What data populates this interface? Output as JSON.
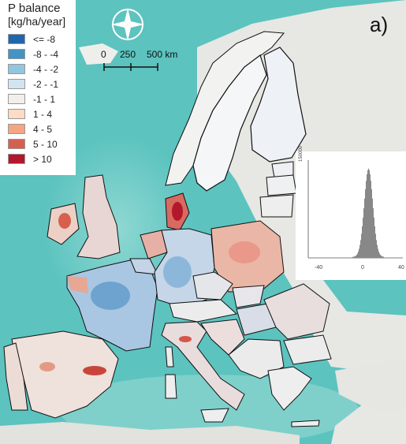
{
  "map": {
    "panel_label": "a)",
    "legend": {
      "title": "P balance",
      "unit": "[kg/ha/year]",
      "classes": [
        {
          "label": "<= -8",
          "color": "#2166ac"
        },
        {
          "label": "-8 - -4",
          "color": "#4393c3"
        },
        {
          "label": "-4 - -2",
          "color": "#92c5de"
        },
        {
          "label": "-2 - -1",
          "color": "#d1e5f0"
        },
        {
          "label": "-1 - 1",
          "color": "#f2efeb"
        },
        {
          "label": "1 - 4",
          "color": "#fddbc7"
        },
        {
          "label": "4 - 5",
          "color": "#f4a582"
        },
        {
          "label": "5 - 10",
          "color": "#d6604d"
        },
        {
          "label": "> 10",
          "color": "#b2182b"
        }
      ]
    },
    "scalebar": {
      "labels": [
        "0",
        "250",
        "500 km"
      ]
    },
    "colors": {
      "sea": "#5cc3bf",
      "land_outside": "#e8e8e4",
      "border": "#111111"
    },
    "icons": {
      "north_arrow": "compass-rose-icon"
    }
  },
  "histogram": {
    "ytick": "150000",
    "xticks": [
      "-40",
      "0",
      "40"
    ],
    "bar_color": "#888888"
  }
}
